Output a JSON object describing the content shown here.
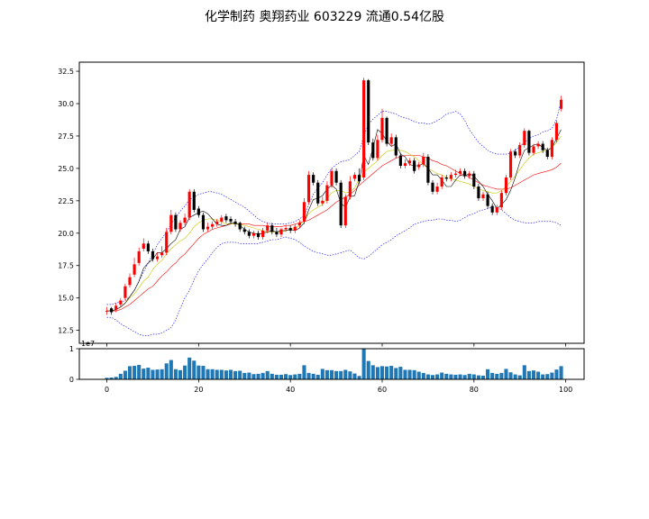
{
  "chart_data": {
    "type": "candlestick",
    "title": "化学制药 奥翔药业 603229 流通0.54亿股",
    "x_ticks": [
      0,
      20,
      40,
      60,
      80,
      100
    ],
    "price_axis": {
      "ylim": [
        11.5,
        33.2
      ],
      "ticks": [
        "12.5",
        "15.0",
        "17.5",
        "20.0",
        "22.5",
        "25.0",
        "27.5",
        "30.0",
        "32.5"
      ]
    },
    "volume_axis": {
      "ylim": [
        0,
        1.0
      ],
      "ticks": [
        "0",
        "1"
      ],
      "offset_label": "1e7"
    },
    "colors": {
      "up": "#ff0000",
      "down": "#000000",
      "ma_short": "#000000",
      "ma_mid": "#c8c800",
      "ma_long": "#ff0000",
      "bollinger": "#0000ff",
      "volume": "#1f77b4"
    },
    "close": [
      14.0,
      13.9,
      14.4,
      14.8,
      15.9,
      16.6,
      17.6,
      18.6,
      19.2,
      18.6,
      18.0,
      18.2,
      18.5,
      20.1,
      21.4,
      20.3,
      20.8,
      21.2,
      23.2,
      21.8,
      21.4,
      20.3,
      20.5,
      20.7,
      20.9,
      21.2,
      21.0,
      20.9,
      20.7,
      20.3,
      20.1,
      19.8,
      20.0,
      19.7,
      20.2,
      20.6,
      20.1,
      19.9,
      20.3,
      20.4,
      20.2,
      20.5,
      20.8,
      22.4,
      24.5,
      23.9,
      22.3,
      22.5,
      23.7,
      24.8,
      23.9,
      20.6,
      22.8,
      24.0,
      24.5,
      24.0,
      31.8,
      27.0,
      25.8,
      27.2,
      28.9,
      26.9,
      27.4,
      26.0,
      25.2,
      25.4,
      25.6,
      24.8,
      25.3,
      25.9,
      23.9,
      23.2,
      23.6,
      24.3,
      24.2,
      24.5,
      24.6,
      24.8,
      24.4,
      24.6,
      23.6,
      22.7,
      23.0,
      22.1,
      21.6,
      22.0,
      23.1,
      24.3,
      26.3,
      26.0,
      26.8,
      27.9,
      26.2,
      26.7,
      26.9,
      26.4,
      25.9,
      27.2,
      28.5,
      30.3
    ],
    "open": [
      14.0,
      14.2,
      14.1,
      14.5,
      15.0,
      16.0,
      16.8,
      17.7,
      18.8,
      19.2,
      18.6,
      18.0,
      18.3,
      18.5,
      20.1,
      21.4,
      20.3,
      20.8,
      21.2,
      23.2,
      21.9,
      21.4,
      20.3,
      20.5,
      20.7,
      20.9,
      21.3,
      21.1,
      20.9,
      20.8,
      20.3,
      20.1,
      19.8,
      20.0,
      19.7,
      20.2,
      20.6,
      20.1,
      19.9,
      20.3,
      20.4,
      20.2,
      20.6,
      20.9,
      22.4,
      24.5,
      23.9,
      22.3,
      22.5,
      23.7,
      24.8,
      23.9,
      20.6,
      22.8,
      24.2,
      24.5,
      24.3,
      31.8,
      27.0,
      25.8,
      27.2,
      28.9,
      26.9,
      27.4,
      26.0,
      25.2,
      25.4,
      25.6,
      25.1,
      25.3,
      25.9,
      23.9,
      23.2,
      23.6,
      24.3,
      24.2,
      24.5,
      24.6,
      24.8,
      24.4,
      24.6,
      23.6,
      22.7,
      23.0,
      22.1,
      21.6,
      22.0,
      23.1,
      24.3,
      26.3,
      26.0,
      26.8,
      27.9,
      26.2,
      26.7,
      26.9,
      26.4,
      25.9,
      27.2,
      29.6
    ],
    "high": [
      14.3,
      14.3,
      14.6,
      15.0,
      16.1,
      16.9,
      18.1,
      18.9,
      19.6,
      19.4,
      18.8,
      18.5,
      19.0,
      20.4,
      21.8,
      21.6,
      21.0,
      21.5,
      23.4,
      23.4,
      22.1,
      21.6,
      20.8,
      20.9,
      21.1,
      21.4,
      21.5,
      21.3,
      21.1,
      20.9,
      20.5,
      20.3,
      20.2,
      20.2,
      20.4,
      20.8,
      20.8,
      20.4,
      20.4,
      20.6,
      20.6,
      20.7,
      21.0,
      22.7,
      24.8,
      24.7,
      24.1,
      22.8,
      24.0,
      25.0,
      25.0,
      24.1,
      23.0,
      24.4,
      24.7,
      25.0,
      32.0,
      31.9,
      27.3,
      27.6,
      29.6,
      29.0,
      27.7,
      27.6,
      26.2,
      25.7,
      25.8,
      25.8,
      25.5,
      26.2,
      26.1,
      24.1,
      23.9,
      24.5,
      24.5,
      24.7,
      24.9,
      25.0,
      25.0,
      24.8,
      24.8,
      23.8,
      23.2,
      23.2,
      22.3,
      22.2,
      23.3,
      24.5,
      26.5,
      26.5,
      27.0,
      28.1,
      28.0,
      26.9,
      27.1,
      27.1,
      26.6,
      27.4,
      28.7,
      30.6
    ],
    "low": [
      13.7,
      13.7,
      13.9,
      14.3,
      14.8,
      15.8,
      16.6,
      17.5,
      18.6,
      18.4,
      17.8,
      17.8,
      18.1,
      18.3,
      19.9,
      20.1,
      20.1,
      20.6,
      21.0,
      21.6,
      21.2,
      20.1,
      20.1,
      20.3,
      20.5,
      20.7,
      20.8,
      20.7,
      20.5,
      20.1,
      19.9,
      19.6,
      19.6,
      19.5,
      19.5,
      20.0,
      19.9,
      19.7,
      19.7,
      20.1,
      20.0,
      20.0,
      20.4,
      20.7,
      22.2,
      23.7,
      22.1,
      22.1,
      22.3,
      23.5,
      23.7,
      20.4,
      20.4,
      22.6,
      24.0,
      23.8,
      24.1,
      26.8,
      25.6,
      25.6,
      27.0,
      26.7,
      26.7,
      25.8,
      25.0,
      25.0,
      25.2,
      24.6,
      24.9,
      25.1,
      23.7,
      23.0,
      23.0,
      23.4,
      24.0,
      24.0,
      24.3,
      24.4,
      24.2,
      24.2,
      23.4,
      22.5,
      22.5,
      21.9,
      21.4,
      21.4,
      21.8,
      22.9,
      24.1,
      25.8,
      25.8,
      26.6,
      26.0,
      26.0,
      26.5,
      26.2,
      25.7,
      25.7,
      27.0,
      29.4
    ],
    "volume": [
      0.05,
      0.06,
      0.08,
      0.18,
      0.28,
      0.43,
      0.44,
      0.47,
      0.35,
      0.38,
      0.31,
      0.32,
      0.33,
      0.52,
      0.63,
      0.33,
      0.3,
      0.45,
      0.71,
      0.61,
      0.45,
      0.44,
      0.33,
      0.33,
      0.31,
      0.31,
      0.29,
      0.31,
      0.27,
      0.28,
      0.21,
      0.22,
      0.17,
      0.18,
      0.21,
      0.27,
      0.18,
      0.15,
      0.15,
      0.17,
      0.14,
      0.16,
      0.18,
      0.46,
      0.21,
      0.18,
      0.15,
      0.34,
      0.3,
      0.3,
      0.27,
      0.27,
      0.31,
      0.26,
      0.19,
      0.11,
      1.0,
      0.6,
      0.46,
      0.4,
      0.43,
      0.42,
      0.44,
      0.37,
      0.41,
      0.31,
      0.31,
      0.3,
      0.25,
      0.21,
      0.16,
      0.14,
      0.16,
      0.22,
      0.18,
      0.16,
      0.15,
      0.16,
      0.14,
      0.18,
      0.16,
      0.13,
      0.12,
      0.33,
      0.21,
      0.18,
      0.21,
      0.34,
      0.23,
      0.16,
      0.13,
      0.46,
      0.27,
      0.29,
      0.25,
      0.16,
      0.17,
      0.22,
      0.32,
      0.43
    ],
    "ma_short": [
      14.0,
      14.0,
      14.1,
      14.3,
      14.6,
      15.1,
      15.6,
      16.3,
      17.3,
      17.7,
      18.0,
      18.5,
      18.5,
      18.8,
      19.2,
      19.5,
      20.3,
      20.5,
      21.2,
      21.4,
      21.6,
      21.7,
      21.5,
      21.1,
      20.7,
      20.6,
      20.6,
      20.8,
      20.8,
      20.6,
      20.3,
      20.1,
      20.0,
      19.9,
      20.0,
      20.1,
      20.2,
      20.1,
      20.2,
      20.2,
      20.3,
      20.2,
      20.4,
      20.8,
      21.8,
      22.6,
      22.7,
      22.9,
      23.4,
      23.7,
      23.4,
      22.3,
      22.0,
      22.8,
      22.9,
      24.0,
      26.0,
      25.3,
      26.6,
      28.0,
      27.7,
      27.1,
      26.7,
      26.9,
      26.1,
      25.9,
      25.3,
      25.2,
      25.2,
      25.4,
      25.0,
      24.5,
      24.5,
      24.1,
      23.6,
      23.6,
      24.1,
      24.5,
      24.4,
      24.6,
      24.4,
      24.0,
      23.6,
      23.0,
      22.5,
      21.9,
      22.2,
      22.6,
      23.3,
      24.3,
      25.5,
      26.4,
      26.6,
      26.8,
      26.9,
      26.6,
      26.4,
      26.6,
      27.3,
      28.0
    ],
    "ma_mid": [
      14.0,
      14.0,
      14.1,
      14.3,
      14.6,
      15.0,
      15.3,
      15.8,
      16.3,
      16.6,
      17.2,
      17.6,
      17.9,
      18.4,
      18.8,
      19.1,
      19.4,
      19.6,
      20.0,
      20.5,
      20.8,
      21.0,
      21.1,
      21.1,
      21.0,
      20.9,
      20.7,
      20.7,
      20.7,
      20.7,
      20.6,
      20.5,
      20.4,
      20.3,
      20.2,
      20.1,
      20.1,
      20.1,
      20.1,
      20.2,
      20.3,
      20.4,
      20.6,
      21.0,
      21.5,
      21.8,
      22.0,
      22.2,
      22.7,
      23.1,
      23.3,
      23.3,
      23.1,
      23.2,
      23.5,
      24.2,
      24.7,
      25.0,
      25.3,
      25.6,
      26.0,
      26.3,
      26.4,
      26.4,
      26.4,
      26.3,
      26.1,
      25.9,
      25.6,
      25.3,
      25.0,
      24.8,
      24.6,
      24.5,
      24.3,
      24.2,
      24.1,
      24.0,
      23.9,
      23.8,
      23.6,
      23.4,
      23.3,
      23.2,
      23.1,
      23.1,
      23.3,
      23.6,
      24.0,
      24.4,
      24.9,
      25.4,
      25.8,
      26.1,
      26.2,
      26.3,
      26.4,
      26.6,
      27.0,
      27.5
    ],
    "ma_long": [
      14.0,
      14.0,
      14.0,
      14.1,
      14.3,
      14.5,
      14.8,
      15.1,
      15.4,
      15.7,
      15.9,
      16.3,
      16.7,
      17.0,
      17.4,
      17.7,
      18.1,
      18.4,
      18.8,
      19.2,
      19.6,
      19.9,
      20.1,
      20.3,
      20.4,
      20.5,
      20.6,
      20.7,
      20.7,
      20.7,
      20.7,
      20.7,
      20.6,
      20.6,
      20.6,
      20.5,
      20.5,
      20.5,
      20.5,
      20.6,
      20.6,
      20.7,
      20.8,
      20.9,
      21.0,
      21.2,
      21.4,
      21.6,
      21.8,
      22.1,
      22.4,
      22.6,
      22.8,
      23.0,
      23.3,
      23.7,
      24.0,
      24.3,
      24.6,
      24.9,
      25.2,
      25.4,
      25.6,
      25.8,
      25.9,
      26.0,
      26.0,
      26.0,
      26.0,
      25.9,
      25.8,
      25.6,
      25.5,
      25.3,
      25.2,
      25.0,
      24.8,
      24.6,
      24.5,
      24.3,
      24.1,
      23.9,
      23.7,
      23.6,
      23.5,
      23.4,
      23.4,
      23.4,
      23.5,
      23.7,
      23.9,
      24.1,
      24.3,
      24.5,
      24.6,
      24.7,
      24.8,
      24.9,
      25.1,
      25.4
    ],
    "boll_upper": [
      14.5,
      14.5,
      14.6,
      14.7,
      14.8,
      15.1,
      15.6,
      16.3,
      17.0,
      17.7,
      18.4,
      19.1,
      19.6,
      20.1,
      20.7,
      21.2,
      21.7,
      22.1,
      22.6,
      22.8,
      23.0,
      23.1,
      23.2,
      23.2,
      23.1,
      23.0,
      22.8,
      22.6,
      22.4,
      22.2,
      22.0,
      21.7,
      21.4,
      21.1,
      20.9,
      20.8,
      20.7,
      20.7,
      20.7,
      20.7,
      20.8,
      20.9,
      21.1,
      21.4,
      22.2,
      23.0,
      23.5,
      23.9,
      24.5,
      25.0,
      25.3,
      25.5,
      25.6,
      25.7,
      26.0,
      26.3,
      27.5,
      28.4,
      28.8,
      29.1,
      29.4,
      29.4,
      29.3,
      29.2,
      29.0,
      28.9,
      28.8,
      28.6,
      28.5,
      28.5,
      28.4,
      28.5,
      28.7,
      28.9,
      29.2,
      29.3,
      29.4,
      29.2,
      28.7,
      28.0,
      27.5,
      27.0,
      26.7,
      26.4,
      26.2,
      26.1,
      26.1,
      26.1,
      26.2,
      26.4,
      26.7,
      27.0,
      27.3,
      27.5,
      27.6,
      27.8,
      27.9,
      28.1,
      28.8,
      30.2
    ],
    "boll_lower": [
      13.5,
      13.5,
      13.3,
      13.0,
      12.8,
      12.6,
      12.4,
      12.2,
      12.1,
      12.1,
      12.2,
      12.2,
      12.3,
      12.5,
      12.7,
      13.3,
      14.2,
      15.0,
      15.6,
      16.4,
      17.1,
      17.6,
      18.0,
      18.5,
      18.9,
      19.2,
      19.3,
      19.3,
      19.3,
      19.2,
      19.2,
      19.2,
      19.2,
      19.2,
      19.3,
      19.4,
      19.5,
      19.5,
      19.6,
      19.7,
      19.6,
      19.5,
      19.3,
      19.0,
      18.8,
      18.6,
      18.5,
      18.4,
      18.3,
      18.3,
      18.4,
      18.5,
      18.6,
      18.7,
      18.4,
      18.1,
      18.0,
      18.2,
      18.5,
      18.8,
      19.1,
      19.3,
      19.5,
      19.8,
      20.0,
      20.2,
      20.4,
      20.7,
      20.8,
      20.9,
      21.0,
      21.0,
      21.1,
      21.1,
      21.0,
      21.0,
      20.9,
      21.0,
      21.2,
      21.4,
      21.5,
      21.7,
      21.8,
      21.9,
      22.0,
      22.0,
      21.8,
      21.5,
      21.2,
      21.0,
      20.9,
      20.8,
      20.8,
      20.8,
      20.9,
      20.9,
      20.9,
      20.9,
      20.8,
      20.6
    ]
  }
}
